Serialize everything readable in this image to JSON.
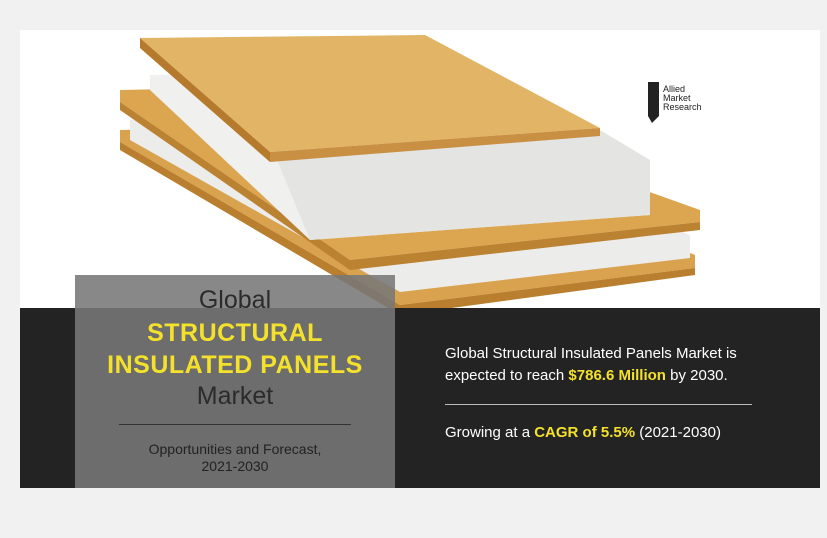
{
  "logo": {
    "lines": [
      "Allied",
      "Market",
      "Research"
    ]
  },
  "title_box": {
    "line1": "Global",
    "line2": "STRUCTURAL",
    "line3": "INSULATED PANELS",
    "line4": "Market",
    "subtitle": "Opportunities and Forecast,",
    "years": "2021-2030"
  },
  "summary": {
    "market": {
      "text1": "Global Structural Insulated Panels Market is",
      "text2": "expected to reach",
      "highlight": "$786.6 Million",
      "text3": "by 2030."
    },
    "growth": {
      "text1": "Growing at a",
      "highlight": "CAGR of 5.5%",
      "text2": "(2021-2030)"
    }
  }
}
